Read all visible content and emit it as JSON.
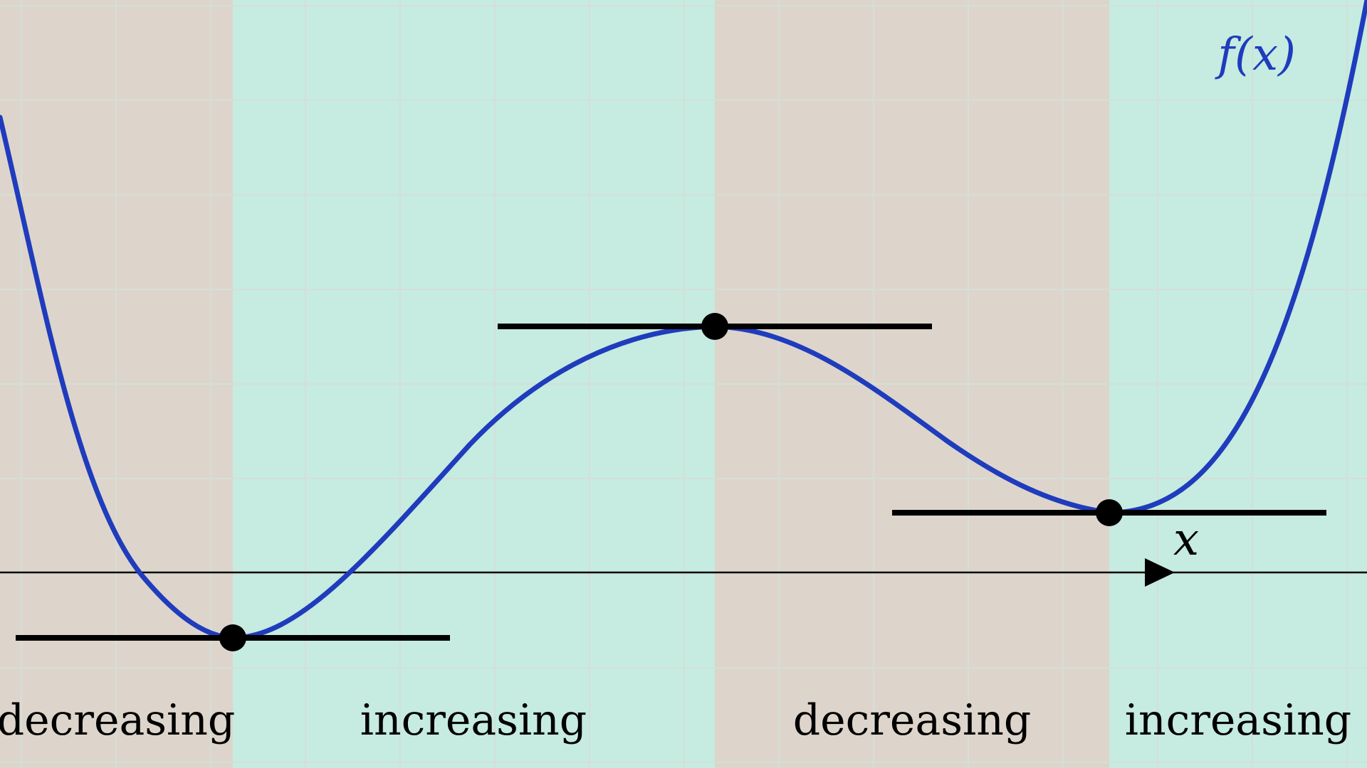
{
  "function_label": "f(x)",
  "axis_label": "x",
  "colors": {
    "decreasing_band": "#ddd5cb",
    "increasing_band": "#c6ebe0",
    "grid": "#d3dfd7",
    "curve": "#1f3cbd",
    "ink": "#000000"
  },
  "regions": [
    {
      "label": "decreasing",
      "trend": "decreasing"
    },
    {
      "label": "increasing",
      "trend": "increasing"
    },
    {
      "label": "decreasing",
      "trend": "decreasing"
    },
    {
      "label": "increasing",
      "trend": "increasing"
    }
  ],
  "critical_points": [
    {
      "kind": "local-minimum"
    },
    {
      "kind": "local-maximum"
    },
    {
      "kind": "local-minimum"
    }
  ]
}
